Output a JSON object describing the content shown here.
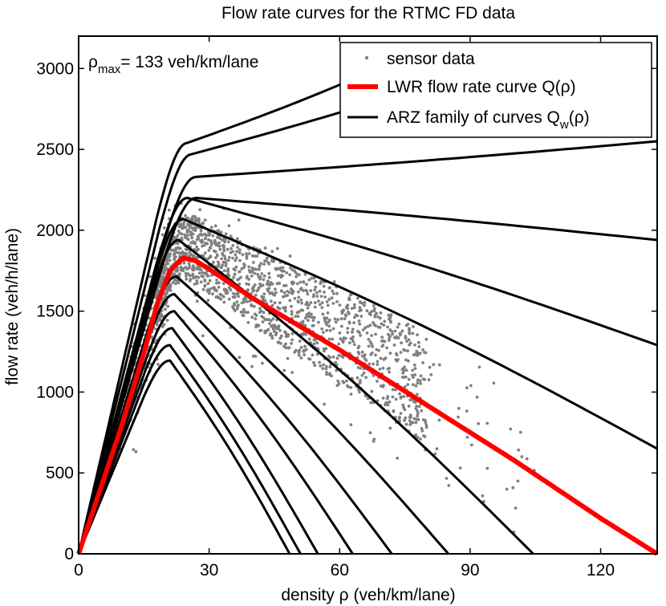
{
  "chart_data": {
    "type": "scatter",
    "title": "Flow rate curves for the RTMC FD data",
    "xlabel": "density ρ (veh/km/lane)",
    "ylabel": "flow rate (veh/h/lane)",
    "xlim": [
      0,
      133
    ],
    "ylim": [
      0,
      3200
    ],
    "xticks": [
      0,
      30,
      60,
      90,
      120
    ],
    "yticks": [
      0,
      500,
      1000,
      1500,
      2000,
      2500,
      3000
    ],
    "annotation": {
      "symbol": "ρ",
      "subscript": "max",
      "text": "= 133 veh/km/lane",
      "rho_max": 133
    },
    "legend": {
      "position": "top-right",
      "entries": [
        {
          "label": "sensor data",
          "style": "marker",
          "color": "#808080"
        },
        {
          "label": "LWR flow rate curve Q(ρ)",
          "style": "thick-line",
          "color": "#ff0000"
        },
        {
          "label_prefix": "ARZ family of curves Q",
          "label_sub": "w",
          "label_suffix": "(ρ)",
          "style": "line",
          "color": "#000000"
        }
      ]
    },
    "lwr_curve": {
      "name": "LWR flow rate curve Q(ρ)",
      "color": "#ff0000",
      "x": [
        0,
        5,
        10,
        15,
        18,
        21,
        24,
        27,
        30,
        40,
        50,
        60,
        70,
        80,
        90,
        100,
        110,
        120,
        133
      ],
      "y": [
        0,
        400,
        800,
        1240,
        1540,
        1750,
        1830,
        1810,
        1760,
        1580,
        1420,
        1260,
        1090,
        920,
        750,
        580,
        400,
        220,
        0
      ]
    },
    "arz_curves": {
      "name": "ARZ family of curves Q_w(ρ)",
      "color": "#000000",
      "series": [
        {
          "peak_x": 21,
          "peak_y": 1195,
          "x_end": 48.5,
          "y_end": 0
        },
        {
          "peak_x": 21,
          "peak_y": 1290,
          "x_end": 51,
          "y_end": 0
        },
        {
          "peak_x": 21.5,
          "peak_y": 1395,
          "x_end": 55,
          "y_end": 0
        },
        {
          "peak_x": 22,
          "peak_y": 1500,
          "x_end": 63,
          "y_end": 0
        },
        {
          "peak_x": 22,
          "peak_y": 1605,
          "x_end": 72,
          "y_end": 0
        },
        {
          "peak_x": 22.5,
          "peak_y": 1715,
          "x_end": 85,
          "y_end": 0
        },
        {
          "peak_x": 23,
          "peak_y": 1940,
          "x_end": 104.5,
          "y_end": 0
        },
        {
          "peak_x": 24,
          "peak_y": 2070,
          "x_end": 133,
          "y_end": 650
        },
        {
          "peak_x": 25,
          "peak_y": 2200,
          "x_end": 133,
          "y_end": 1290
        },
        {
          "peak_x": 27,
          "peak_y": 2200,
          "x_end": 133,
          "y_end": 1940
        },
        {
          "peak_x": 27,
          "peak_y": 2330,
          "x_end": 133,
          "y_end": 2550
        },
        {
          "peak_x": 26,
          "peak_y": 2470,
          "x_end": 113,
          "y_end": 3200
        },
        {
          "peak_x": 25,
          "peak_y": 2540,
          "x_end": 85,
          "y_end": 3200
        }
      ]
    },
    "sensor_data": {
      "name": "sensor data",
      "color": "#808080",
      "note": "dense cloud of several thousand measurements; approximated by a band of points"
    }
  }
}
